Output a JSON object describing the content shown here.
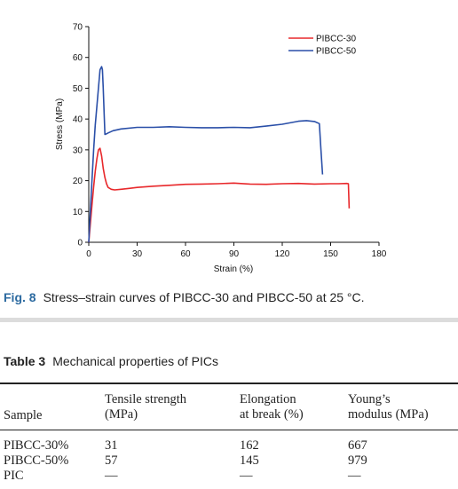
{
  "chart_data": {
    "type": "line",
    "xlabel": "Strain (%)",
    "ylabel": "Stress (MPa)",
    "xlim": [
      0,
      180
    ],
    "ylim": [
      0,
      70
    ],
    "xticks": [
      0,
      30,
      60,
      90,
      120,
      150,
      180
    ],
    "yticks": [
      0,
      10,
      20,
      30,
      40,
      50,
      60,
      70
    ],
    "grid": false,
    "legend_position": "top-right",
    "series": [
      {
        "name": "PIBCC-30",
        "color": "#e8282b",
        "x": [
          0,
          1,
          2,
          3,
          4,
          5,
          6,
          7,
          8,
          9,
          10,
          11,
          12,
          14,
          16,
          20,
          25,
          30,
          40,
          50,
          60,
          70,
          80,
          90,
          100,
          110,
          120,
          130,
          140,
          150,
          155,
          160,
          161,
          161.5
        ],
        "y": [
          0,
          6,
          12,
          18,
          23,
          27,
          30,
          30.5,
          28,
          24,
          21,
          19,
          17.8,
          17.2,
          17,
          17.2,
          17.5,
          17.8,
          18.2,
          18.5,
          18.8,
          18.9,
          19,
          19.2,
          18.9,
          18.8,
          19,
          19.1,
          18.9,
          19,
          19,
          19.1,
          19,
          11
        ]
      },
      {
        "name": "PIBCC-50",
        "color": "#2a4fa8",
        "x": [
          0,
          1,
          2,
          3,
          4,
          5,
          6,
          7,
          8,
          8.5,
          9,
          9.5,
          10,
          11,
          12,
          15,
          20,
          30,
          40,
          50,
          60,
          70,
          80,
          90,
          100,
          110,
          120,
          130,
          135,
          140,
          143,
          144,
          145
        ],
        "y": [
          0,
          10,
          20,
          30,
          38,
          44,
          50,
          56,
          57,
          56,
          50,
          42,
          35,
          35.2,
          35.5,
          36.2,
          36.8,
          37.3,
          37.3,
          37.5,
          37.3,
          37.2,
          37.2,
          37.3,
          37.2,
          37.7,
          38.3,
          39.3,
          39.5,
          39.2,
          38.5,
          30,
          22
        ]
      }
    ]
  },
  "figure": {
    "label": "Fig. 8",
    "caption": "Stress–strain curves of PIBCC-30 and PIBCC-50 at 25 °C."
  },
  "table": {
    "label": "Table 3",
    "title": "Mechanical properties of PICs",
    "headers": [
      [
        "Sample"
      ],
      [
        "Tensile strength",
        "(MPa)"
      ],
      [
        "Elongation",
        "at break (%)"
      ],
      [
        "Young’s",
        "modulus (MPa)"
      ]
    ],
    "rows": [
      [
        "PIBCC-30%",
        "31",
        "162",
        "667"
      ],
      [
        "PIBCC-50%",
        "57",
        "145",
        "979"
      ],
      [
        "PIC",
        "—",
        "—",
        "—"
      ]
    ]
  }
}
